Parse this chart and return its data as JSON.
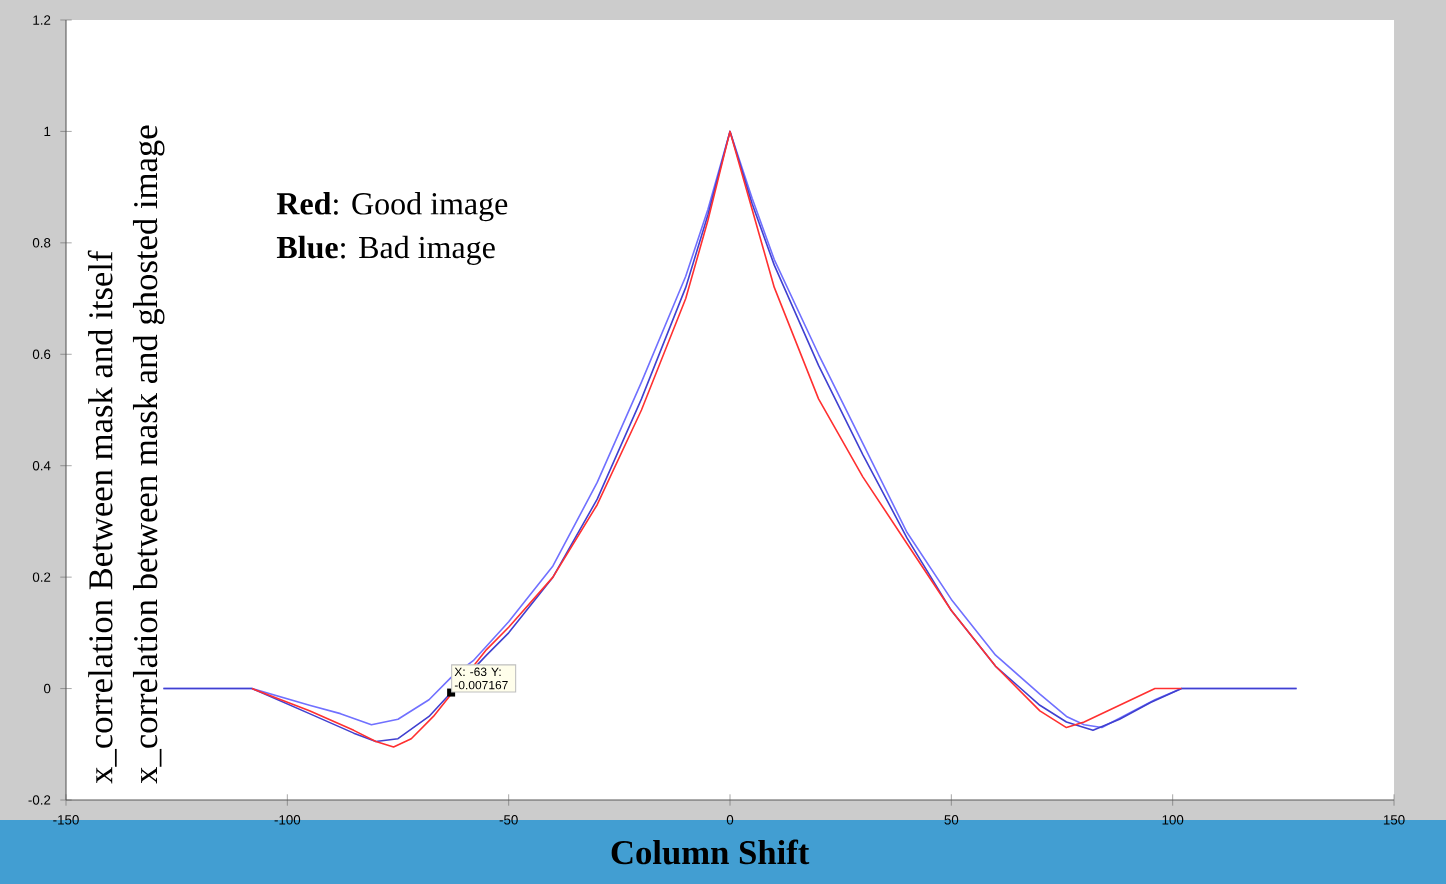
{
  "chart_data": {
    "type": "line",
    "xlabel": "Column Shift",
    "ylabel": "x_correlation Between mask and itself",
    "annotations": [
      "**Red**: Good image",
      "**Blue**: Bad image",
      "x_correlation between mask and ghosted image",
      {
        "text": "X: -63 Y: -0.007167",
        "x": -63,
        "y": -0.007167
      }
    ],
    "xlim": [
      -150,
      150
    ],
    "xticks": [
      -150,
      -100,
      -50,
      0,
      50,
      100,
      150
    ],
    "ylim": [
      -0.2,
      1.2
    ],
    "yticks": [
      -0.2,
      0,
      0.2,
      0.4,
      0.6,
      0.8,
      1,
      1.2
    ],
    "grid": false,
    "marker": "none",
    "line_style": "solid",
    "series": [
      {
        "color": "#7070ff",
        "x": [
          -128,
          -108,
          -95,
          -88,
          -81,
          -75,
          -68,
          -63,
          -58,
          -50,
          -40,
          -30,
          -20,
          -10,
          -5,
          0,
          5,
          10,
          20,
          30,
          40,
          50,
          60,
          70,
          76,
          80,
          84,
          90,
          96,
          102,
          128
        ],
        "values": [
          0,
          0,
          -0.03,
          -0.045,
          -0.065,
          -0.055,
          -0.02,
          0.02,
          0.05,
          0.12,
          0.22,
          0.37,
          0.55,
          0.74,
          0.86,
          1.0,
          0.88,
          0.77,
          0.6,
          0.44,
          0.28,
          0.16,
          0.06,
          -0.01,
          -0.05,
          -0.065,
          -0.07,
          -0.045,
          -0.02,
          0,
          0
        ]
      },
      {
        "color": "#4040d0",
        "x": [
          -128,
          -108,
          -95,
          -85,
          -80,
          -75,
          -68,
          -63,
          -55,
          -50,
          -40,
          -30,
          -20,
          -10,
          -5,
          0,
          5,
          10,
          20,
          30,
          40,
          50,
          60,
          70,
          76,
          82,
          88,
          95,
          102,
          128
        ],
        "values": [
          0,
          0,
          -0.045,
          -0.08,
          -0.095,
          -0.09,
          -0.05,
          -0.007,
          0.06,
          0.1,
          0.2,
          0.34,
          0.52,
          0.72,
          0.85,
          1.0,
          0.87,
          0.76,
          0.58,
          0.42,
          0.27,
          0.14,
          0.04,
          -0.03,
          -0.06,
          -0.075,
          -0.055,
          -0.025,
          0,
          0
        ]
      },
      {
        "color": "#ff3030",
        "x": [
          -108,
          -95,
          -85,
          -80,
          -76,
          -72,
          -67,
          -63,
          -55,
          -50,
          -40,
          -30,
          -20,
          -10,
          -5,
          0,
          5,
          10,
          20,
          30,
          40,
          50,
          60,
          70,
          76,
          80,
          88,
          96,
          102
        ],
        "values": [
          0,
          -0.04,
          -0.075,
          -0.095,
          -0.105,
          -0.09,
          -0.05,
          -0.01,
          0.07,
          0.11,
          0.2,
          0.33,
          0.5,
          0.7,
          0.84,
          1.0,
          0.86,
          0.72,
          0.52,
          0.38,
          0.26,
          0.14,
          0.04,
          -0.04,
          -0.07,
          -0.06,
          -0.03,
          0,
          0
        ]
      }
    ]
  }
}
